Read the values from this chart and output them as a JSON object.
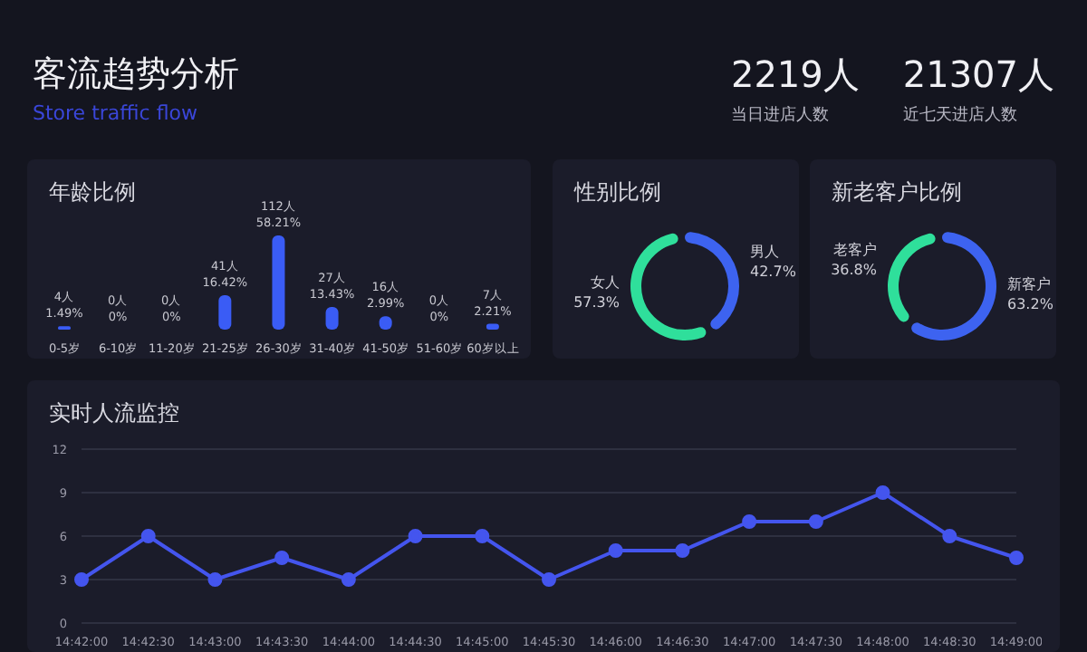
{
  "chart_data": [
    {
      "type": "other",
      "title": "客流趋势分析",
      "subtitle": "Store traffic flow",
      "annotations": [
        "2219人",
        "当日进店人数",
        "21307人",
        "近七天进店人数"
      ]
    },
    {
      "type": "bar",
      "title": "年龄比例",
      "categories": [
        "0-5岁",
        "6-10岁",
        "11-20岁",
        "21-25岁",
        "26-30岁",
        "31-40岁",
        "41-50岁",
        "51-60岁",
        "60岁以上"
      ],
      "values": [
        4,
        0,
        0,
        41,
        112,
        27,
        16,
        0,
        7
      ],
      "color": "#3a5cf5",
      "value_labels": [
        "4人 1.49%",
        "0人 0%",
        "0人 0%",
        "41人 16.42%",
        "112人 58.21%",
        "27人 13.43%",
        "16人 2.99%",
        "0人 0%",
        "7人 2.21%"
      ]
    },
    {
      "type": "donut",
      "title": "性别比例",
      "categories": [
        "男人",
        "女人"
      ],
      "values": [
        42.7,
        57.3
      ],
      "colors": [
        "#3d63f0",
        "#2fdf9b"
      ],
      "value_labels": [
        "42.7%",
        "57.3%"
      ]
    },
    {
      "type": "donut",
      "title": "新老客户比例",
      "categories": [
        "新客户",
        "老客户"
      ],
      "values": [
        63.2,
        36.8
      ],
      "colors": [
        "#3d63f0",
        "#2fdf9b"
      ],
      "value_labels": [
        "63.2%",
        "36.8%"
      ]
    },
    {
      "type": "line",
      "title": "实时人流监控",
      "categories": [
        "14:42:00",
        "14:42:30",
        "14:43:00",
        "14:43:30",
        "14:44:00",
        "14:44:30",
        "14:45:00",
        "14:45:30",
        "14:46:00",
        "14:46:30",
        "14:47:00",
        "14:47:30",
        "14:48:00",
        "14:48:30",
        "14:49:00"
      ],
      "values": [
        3,
        6,
        3,
        4.5,
        3,
        6,
        6,
        3,
        5,
        5,
        7,
        7,
        9,
        6,
        4.5
      ],
      "color": "#4455ee",
      "ylim": [
        0,
        12
      ],
      "yticks": [
        0,
        3,
        6,
        9,
        12
      ],
      "grid": "y",
      "marker": "circle",
      "legend": false
    }
  ]
}
